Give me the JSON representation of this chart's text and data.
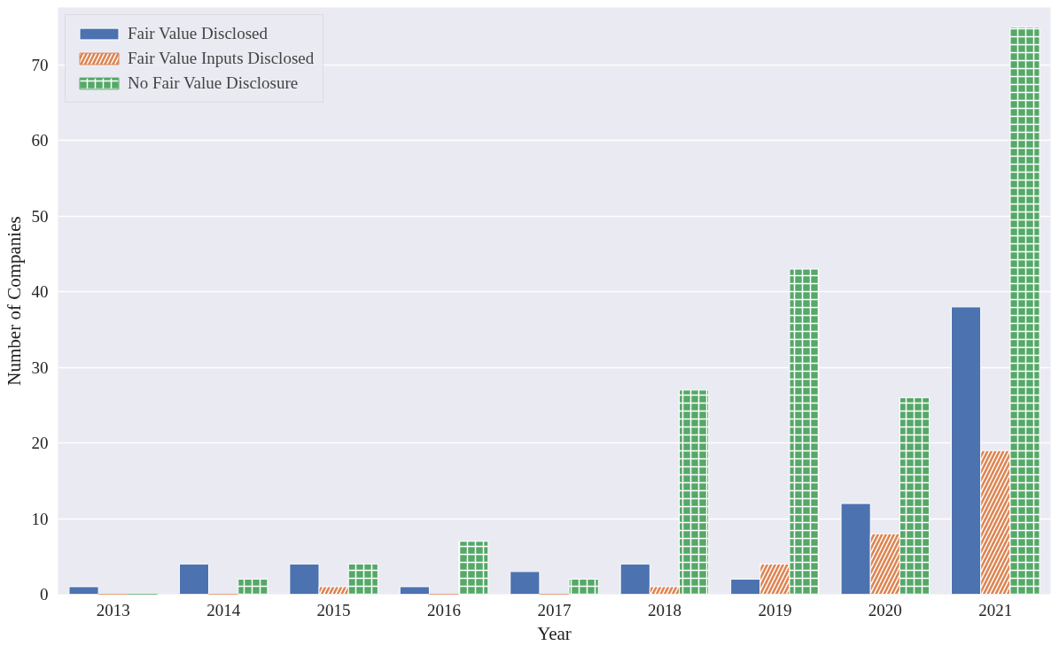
{
  "chart_data": {
    "type": "bar",
    "xlabel": "Year",
    "ylabel": "Number of Companies",
    "categories": [
      "2013",
      "2014",
      "2015",
      "2016",
      "2017",
      "2018",
      "2019",
      "2020",
      "2021"
    ],
    "series": [
      {
        "name": "Fair Value Disclosed",
        "color": "#4c72b0",
        "values": [
          1,
          4,
          4,
          1,
          3,
          4,
          2,
          12,
          38
        ]
      },
      {
        "name": "Fair Value Inputs Disclosed",
        "color": "#dd8452",
        "values": [
          0,
          0,
          1,
          0,
          0,
          1,
          4,
          8,
          19
        ]
      },
      {
        "name": "No Fair Value Disclosure",
        "color": "#55a868",
        "values": [
          0,
          2,
          4,
          7,
          2,
          27,
          43,
          26,
          75
        ]
      }
    ],
    "ylim": [
      0,
      77.6
    ],
    "yticks": [
      0,
      10,
      20,
      30,
      40,
      50,
      60,
      70
    ],
    "grid": "y",
    "legend": "top left"
  }
}
